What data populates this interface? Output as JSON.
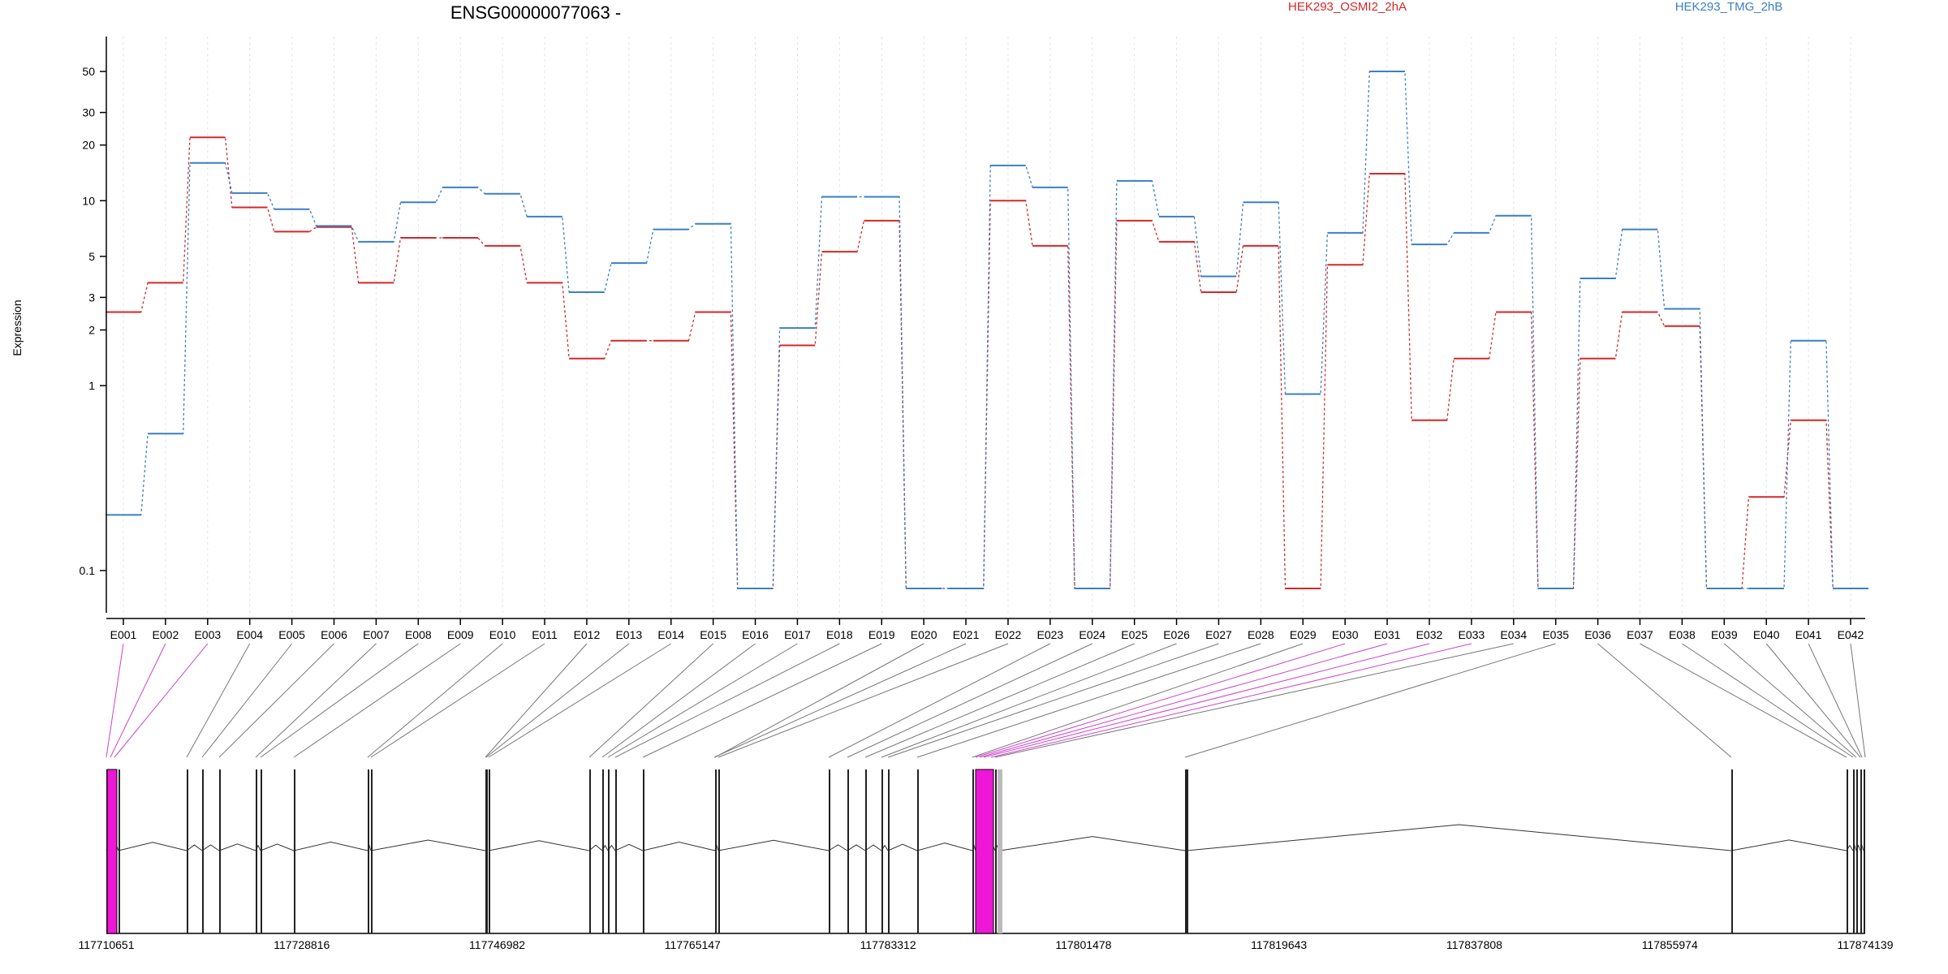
{
  "chart_data": {
    "type": "line",
    "title": "ENSG00000077063 -",
    "ylabel": "Expression",
    "yscale": "log",
    "ylim": [
      0.08,
      60
    ],
    "yticks": [
      0.1,
      1,
      2,
      3,
      5,
      10,
      20,
      30,
      50
    ],
    "categories": [
      "E001",
      "E002",
      "E003",
      "E004",
      "E005",
      "E006",
      "E007",
      "E008",
      "E009",
      "E010",
      "E011",
      "E012",
      "E013",
      "E014",
      "E015",
      "E016",
      "E017",
      "E018",
      "E019",
      "E020",
      "E021",
      "E022",
      "E023",
      "E024",
      "E025",
      "E026",
      "E027",
      "E028",
      "E029",
      "E030",
      "E031",
      "E032",
      "E033",
      "E034",
      "E035",
      "E036",
      "E037",
      "E038",
      "E039",
      "E040",
      "E041",
      "E042"
    ],
    "series": [
      {
        "name": "HEK293_OSMI2_2hA",
        "color": "#d62728",
        "values": [
          2.5,
          3.6,
          22,
          9.2,
          6.8,
          7.2,
          3.6,
          6.3,
          6.3,
          5.7,
          3.6,
          1.4,
          1.75,
          1.75,
          2.5,
          0.08,
          1.65,
          5.3,
          7.8,
          0.08,
          0.08,
          10,
          5.7,
          0.08,
          7.8,
          6,
          3.2,
          5.7,
          0.08,
          4.5,
          14,
          0.65,
          1.4,
          2.5,
          0.08,
          1.4,
          2.5,
          2.1,
          0.08,
          0.25,
          0.65,
          0.08
        ]
      },
      {
        "name": "HEK293_TMG_2hB",
        "color": "#3b7fc4",
        "values": [
          0.2,
          0.55,
          16,
          11,
          9,
          7.3,
          6,
          9.8,
          11.8,
          10.9,
          8.2,
          3.2,
          4.6,
          7,
          7.5,
          0.08,
          2.05,
          10.5,
          10.5,
          0.08,
          0.08,
          15.5,
          11.8,
          0.08,
          12.8,
          8.2,
          3.9,
          9.8,
          0.9,
          6.7,
          50,
          5.8,
          6.7,
          8.3,
          0.08,
          3.8,
          7,
          2.6,
          0.08,
          0.08,
          1.75,
          0.08
        ]
      }
    ],
    "gene_model": {
      "coordinate_range": [
        117710651,
        117874139
      ],
      "coordinate_ticks": [
        "117710651",
        "117728816",
        "117746982",
        "117765147",
        "117783312",
        "117801478",
        "117819643",
        "117837808",
        "117855974",
        "117874139"
      ],
      "highlight_color": "#ee17d8",
      "highlighted_exons": [
        "E001",
        "E002",
        "E003",
        "E030",
        "E031",
        "E032",
        "E033"
      ]
    },
    "grid": false,
    "legend": "top-right"
  }
}
